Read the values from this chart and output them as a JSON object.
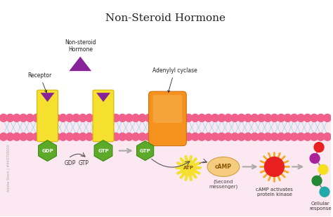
{
  "title": "Non-Steroid Hormone",
  "bg_color": "#ffffff",
  "membrane_pink": "#f0608a",
  "inner_cell_bg": "#fce8f0",
  "receptor_color": "#f5e030",
  "receptor_border": "#d4b800",
  "hormone_color": "#882299",
  "gdp_gtp_color": "#5daa2a",
  "gdp_gtp_border": "#3a8a10",
  "adenylyl_color": "#f5921e",
  "adenylyl_highlight": "#f5b050",
  "atp_color": "#f5e030",
  "camp_color": "#f5cc80",
  "camp_border": "#d0a040",
  "sun_ray_color": "#f5a820",
  "kinase_color": "#e82020",
  "arrow_color": "#999999",
  "lipid_color": "#aaddee",
  "mol_colors": [
    "#e82020",
    "#aa2299",
    "#f5e020",
    "#228833",
    "#22aaaa"
  ],
  "labels": {
    "title": "Non-Steroid Hormone",
    "receptor": "Receptor",
    "non_steroid": "Non-steroid\nHormone",
    "adenylyl": "Adenylyl cyclase",
    "gdp": "GDP",
    "gtp": "GTP",
    "atp": "ATP",
    "camp": "cAMP",
    "second_msg": "(Second\nmessenger)",
    "camp_activates": "cAMP activates\nprotein kinase",
    "cellular": "Cellular\nresponse",
    "watermark": "Adobe Stock | #640700000"
  }
}
